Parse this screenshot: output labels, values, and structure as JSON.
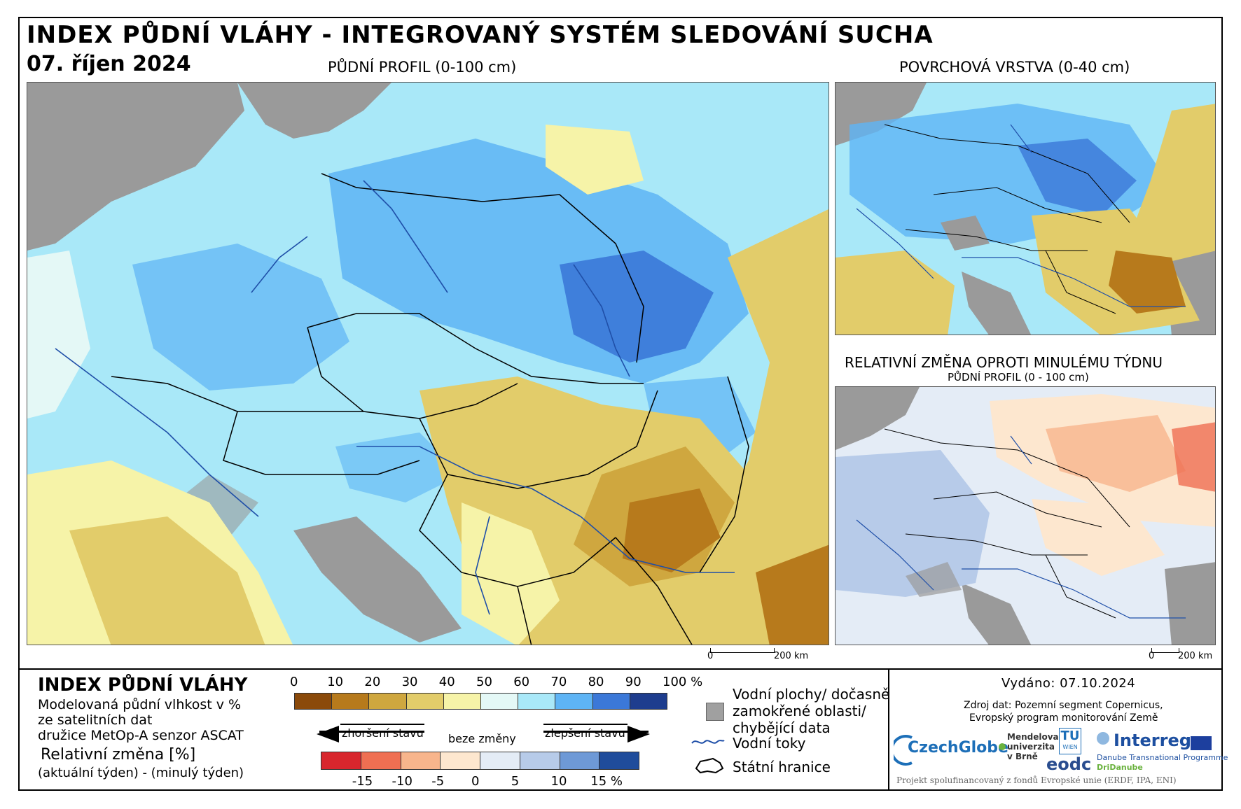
{
  "header": {
    "title": "INDEX PŮDNÍ VLÁHY - INTEGROVANÝ SYSTÉM SLEDOVÁNÍ SUCHA",
    "date": "07. říjen 2024"
  },
  "maps": {
    "main": {
      "label": "PŮDNÍ PROFIL (0-100 cm)",
      "scale_zero": "0",
      "scale_end": "200 km"
    },
    "surface": {
      "label": "POVRCHOVÁ VRSTVA (0-40 cm)"
    },
    "change": {
      "label": "RELATIVNÍ ZMĚNA OPROTI MINULÉMU TÝDNU",
      "sublabel": "PŮDNÍ PROFIL (0 - 100 cm)",
      "scale_zero": "0",
      "scale_end": "200 km"
    }
  },
  "legend": {
    "title": "INDEX PŮDNÍ VLÁHY",
    "desc_lines": [
      "Modelovaná půdní vlhkost v %",
      "ze satelitních dat",
      "družice MetOp-A senzor ASCAT"
    ],
    "relative_title": "Relativní změna [%]",
    "relative_desc": "(aktuální týden) - (minulý týden)",
    "index_ticks": [
      "0",
      "10",
      "20",
      "30",
      "40",
      "50",
      "60",
      "70",
      "80",
      "90",
      "100 %"
    ],
    "index_colors": [
      "#8b4a0a",
      "#b77a1c",
      "#cfa73f",
      "#e2cc6a",
      "#f6f3a8",
      "#e4f8f6",
      "#a9e8f8",
      "#5eb4f5",
      "#3b78d8",
      "#1e3d8e"
    ],
    "worse_label": "zhoršení stavu",
    "same_label": "beze změny",
    "better_label": "zlepšení stavu",
    "change_ticks": [
      "-15",
      "-10",
      "-5",
      "0",
      "5",
      "10",
      "15 %"
    ],
    "change_colors": [
      "#d8262d",
      "#ef6f52",
      "#f8b58c",
      "#fde7cf",
      "#e4ecf6",
      "#b7cbe9",
      "#6e99d6",
      "#1f4c9b"
    ],
    "water_label_lines": [
      "Vodní plochy/ dočasně",
      "zamokřené oblasti/",
      "chybějící data"
    ],
    "rivers_label": "Vodní toky",
    "borders_label": "Státní hranice",
    "water_color": "#a0a0a0",
    "river_color": "#1f4fa8"
  },
  "info": {
    "issued": "Vydáno: 07.10.2024",
    "source_lines": [
      "Zdroj dat: Pozemní segment Copernicus,",
      "Evropský program monitorování Země"
    ],
    "logos": {
      "czechglobe": "CzechGlobe",
      "mendel_lines": [
        "Mendelova",
        "univerzita",
        "v Brně"
      ],
      "tuwien_top": "TU",
      "tuwien_bottom": "WIEN",
      "eodc": "eodc",
      "interreg": "Interreg",
      "interreg_sub": "Danube Transnational Programme",
      "dridanube": "DriDanube"
    },
    "funding": "Projekt spolufinancovaný z fondů Evropské unie (ERDF, IPA, ENI)"
  }
}
